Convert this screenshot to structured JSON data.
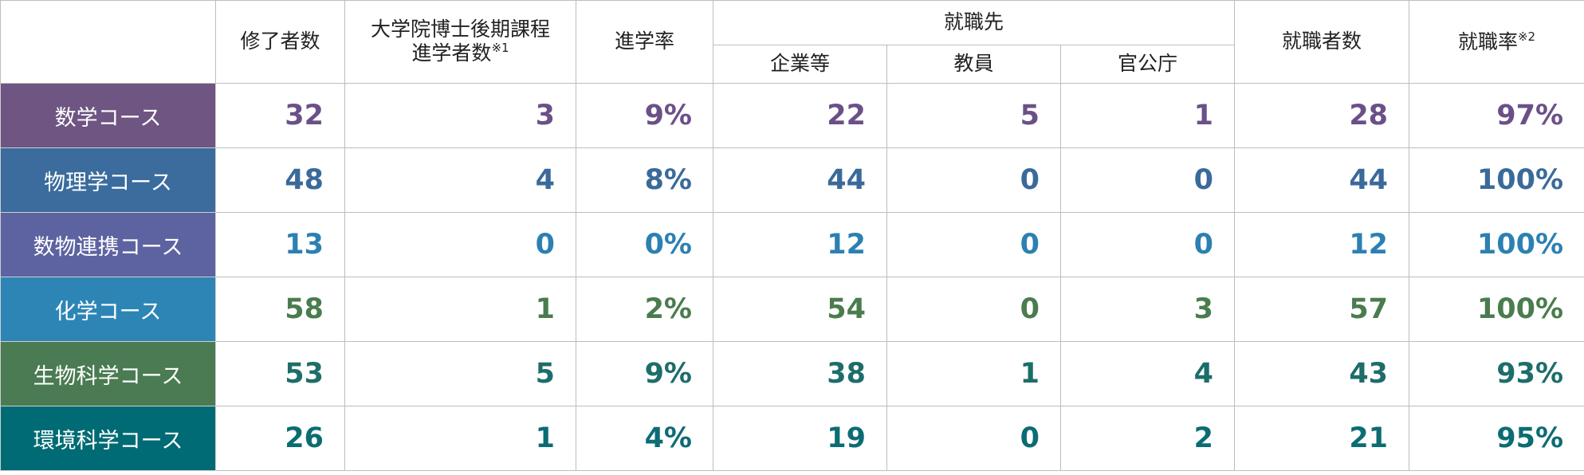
{
  "header": {
    "completed": "修了者数",
    "doctoral_line1": "大学院博士後期課程",
    "doctoral_line2": "進学者数",
    "doctoral_note": "※1",
    "advance_rate": "進学率",
    "employment_dest": "就職先",
    "dest_company": "企業等",
    "dest_teacher": "教員",
    "dest_government": "官公庁",
    "employed": "就職者数",
    "employment_rate": "就職率",
    "employment_rate_note": "※2"
  },
  "rows": [
    {
      "name": "数学コース",
      "label_color": "#6e5582",
      "text_color": "#6b5088",
      "cells": [
        "32",
        "3",
        "9%",
        "22",
        "5",
        "1",
        "28",
        "97%"
      ]
    },
    {
      "name": "物理学コース",
      "label_color": "#3b6c9d",
      "text_color": "#3a6a9a",
      "cells": [
        "48",
        "4",
        "8%",
        "44",
        "0",
        "0",
        "44",
        "100%"
      ]
    },
    {
      "name": "数物連携コース",
      "label_color": "#5d63a0",
      "text_color": "#2c80b2",
      "cells": [
        "13",
        "0",
        "0%",
        "12",
        "0",
        "0",
        "12",
        "100%"
      ]
    },
    {
      "name": "化学コース",
      "label_color": "#2d85b6",
      "text_color": "#4a7c4e",
      "cells": [
        "58",
        "1",
        "2%",
        "54",
        "0",
        "3",
        "57",
        "100%"
      ]
    },
    {
      "name": "生物科学コース",
      "label_color": "#4a7b52",
      "text_color": "#1d6d6a",
      "cells": [
        "53",
        "5",
        "9%",
        "38",
        "1",
        "4",
        "43",
        "93%"
      ]
    },
    {
      "name": "環境科学コース",
      "label_color": "#006b74",
      "text_color": "#0c6c73",
      "cells": [
        "26",
        "1",
        "4%",
        "19",
        "0",
        "2",
        "21",
        "95%"
      ]
    }
  ]
}
